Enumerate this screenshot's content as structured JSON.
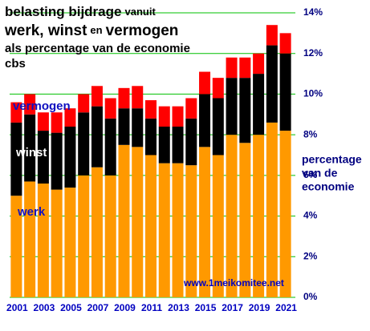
{
  "chart_data": {
    "type": "stacked-bar",
    "title_parts": [
      "belasting bijdrage",
      "vanuit",
      "werk, winst",
      "en",
      "vermogen"
    ],
    "subtitle": "als percentage van de economie",
    "source": "cbs",
    "ylabel": [
      "percentage",
      "van de",
      "economie"
    ],
    "annotation": "www.1meikomitee.net",
    "categories": [
      "2001",
      null,
      "2003",
      null,
      "2005",
      null,
      "2007",
      null,
      "2009",
      null,
      "2011",
      null,
      "2013",
      null,
      "2015",
      null,
      "2017",
      null,
      "2019",
      null,
      "2021"
    ],
    "series": [
      {
        "name": "werk",
        "color": "#ff9900",
        "label_color": "#1010c0",
        "values": [
          5.0,
          5.7,
          5.6,
          5.3,
          5.4,
          6.0,
          6.4,
          6.0,
          7.5,
          7.4,
          7.0,
          6.6,
          6.6,
          6.5,
          7.4,
          7.0,
          8.0,
          7.6,
          8.0,
          8.6,
          8.2
        ]
      },
      {
        "name": "winst",
        "color": "#000000",
        "label_color": "#ffffff",
        "values": [
          3.6,
          3.3,
          2.6,
          2.8,
          3.0,
          3.1,
          3.0,
          2.8,
          1.8,
          1.9,
          1.8,
          1.8,
          1.8,
          2.3,
          2.6,
          2.8,
          2.8,
          3.2,
          3.0,
          3.8,
          3.8
        ]
      },
      {
        "name": "vermogen",
        "color": "#ff0000",
        "label_color": "#1010c0",
        "values": [
          1.0,
          1.0,
          0.9,
          1.0,
          0.9,
          0.9,
          1.0,
          1.0,
          1.0,
          1.1,
          0.9,
          1.0,
          1.0,
          1.0,
          1.1,
          1.0,
          1.0,
          1.0,
          1.0,
          1.0,
          1.0
        ]
      }
    ],
    "ylim": [
      0,
      14
    ],
    "yticks": [
      {
        "value": 0,
        "label": "0%"
      },
      {
        "value": 2,
        "label": "2%"
      },
      {
        "value": 4,
        "label": "4%"
      },
      {
        "value": 6,
        "label": "6%"
      },
      {
        "value": 8,
        "label": "8%"
      },
      {
        "value": 10,
        "label": "10%"
      },
      {
        "value": 12,
        "label": "12%"
      },
      {
        "value": 14,
        "label": "14%"
      }
    ],
    "grid": true,
    "grid_color": "#00c000"
  }
}
